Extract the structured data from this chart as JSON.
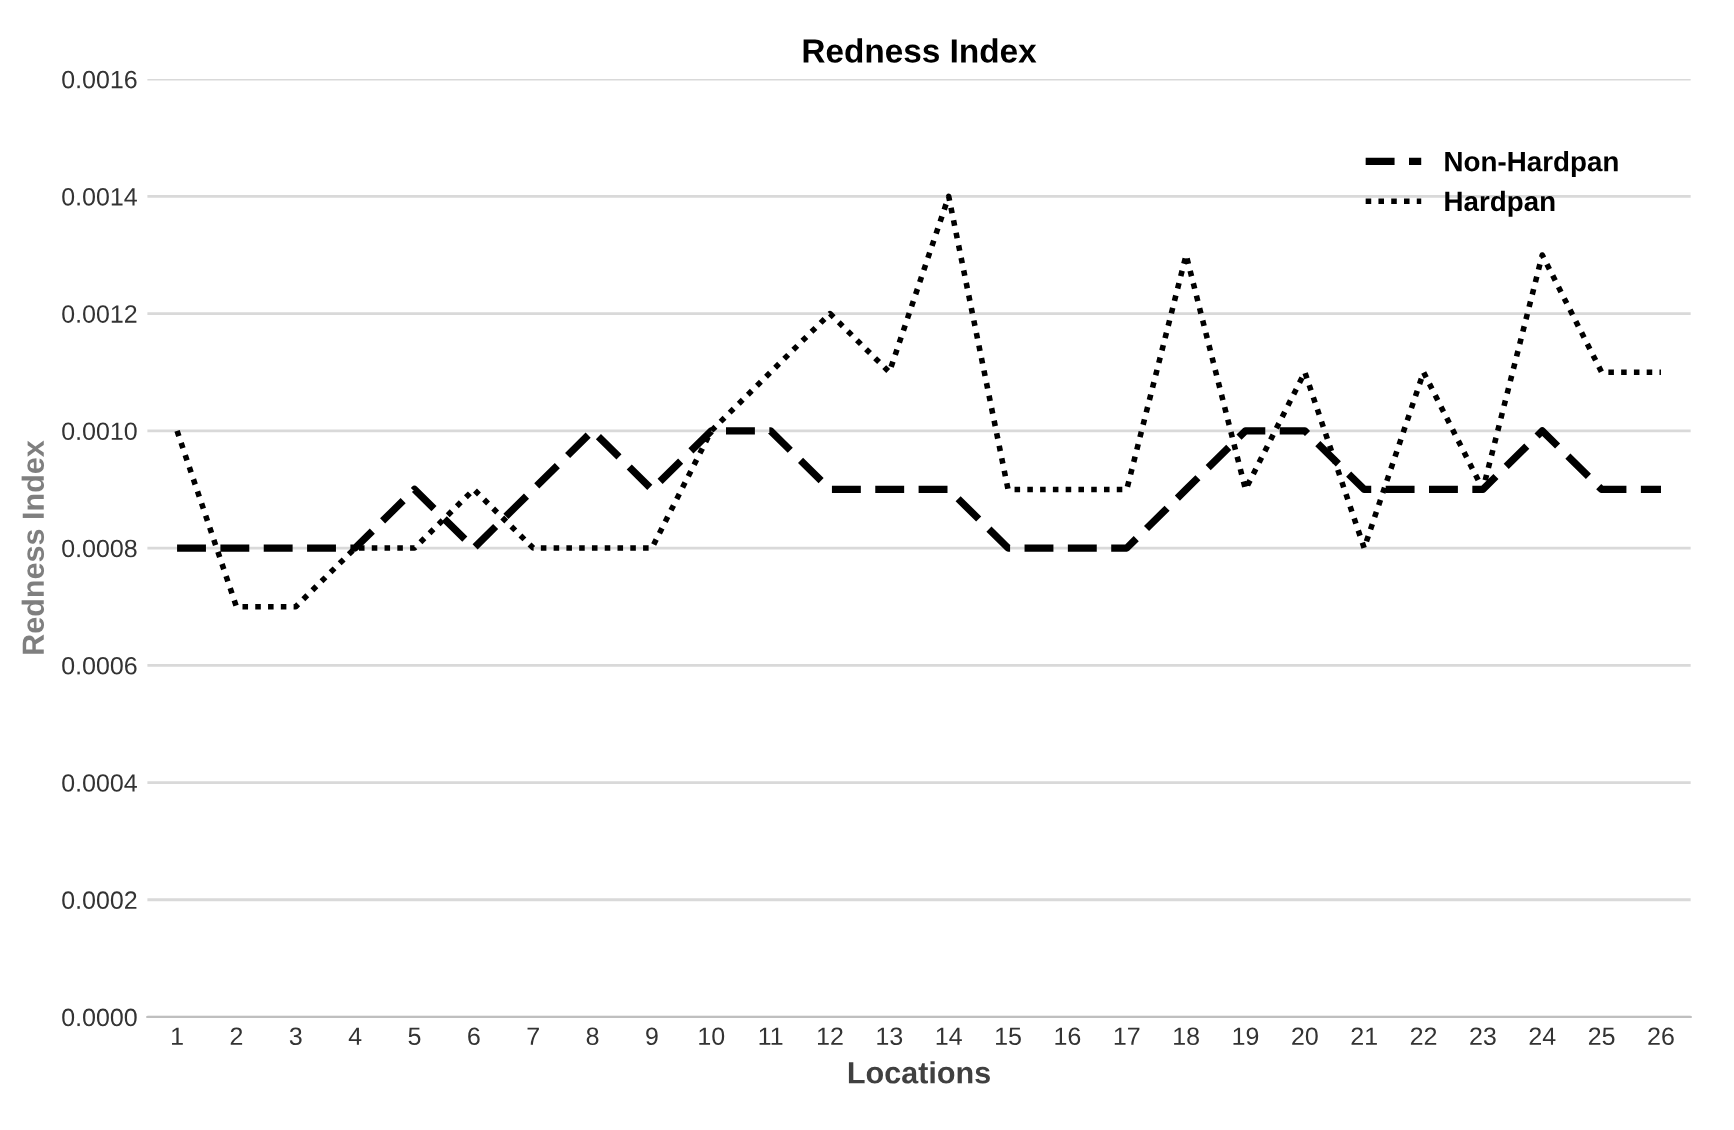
{
  "chart_data": {
    "type": "line",
    "title": "Redness Index",
    "xlabel": "Locations",
    "ylabel": "Redness Index",
    "categories": [
      "1",
      "2",
      "3",
      "4",
      "5",
      "6",
      "7",
      "8",
      "9",
      "10",
      "11",
      "12",
      "13",
      "14",
      "15",
      "16",
      "17",
      "18",
      "19",
      "20",
      "21",
      "22",
      "23",
      "24",
      "25",
      "26"
    ],
    "ylim": [
      0,
      0.0016
    ],
    "yticks": [
      {
        "value": 0,
        "label": "0.0000"
      },
      {
        "value": 0.0002,
        "label": "0.0002"
      },
      {
        "value": 0.0004,
        "label": "0.0004"
      },
      {
        "value": 0.0006,
        "label": "0.0006"
      },
      {
        "value": 0.0008,
        "label": "0.0008"
      },
      {
        "value": 0.001,
        "label": "0.0010"
      },
      {
        "value": 0.0012,
        "label": "0.0012"
      },
      {
        "value": 0.0014,
        "label": "0.0014"
      },
      {
        "value": 0.0016,
        "label": "0.0016"
      }
    ],
    "grid": "y",
    "legend": "top right",
    "series": [
      {
        "name": "Non-Hardpan",
        "color": "#000000",
        "line_style": "dashed",
        "values": [
          0.0008,
          0.0008,
          0.0008,
          0.0008,
          0.0009,
          0.0008,
          0.0009,
          0.001,
          0.0009,
          0.001,
          0.001,
          0.0009,
          0.0009,
          0.0009,
          0.0008,
          0.0008,
          0.0008,
          0.0009,
          0.001,
          0.001,
          0.0009,
          0.0009,
          0.0009,
          0.001,
          0.0009,
          0.0009
        ]
      },
      {
        "name": "Hardpan",
        "color": "#000000",
        "line_style": "dotted",
        "values": [
          0.001,
          0.0007,
          0.0007,
          0.0008,
          0.0008,
          0.0009,
          0.0008,
          0.0008,
          0.0008,
          0.001,
          0.0011,
          0.0012,
          0.0011,
          0.0014,
          0.0009,
          0.0009,
          0.0009,
          0.0013,
          0.0009,
          0.0011,
          0.0008,
          0.0011,
          0.0009,
          0.0013,
          0.0011,
          0.0011
        ]
      }
    ]
  }
}
